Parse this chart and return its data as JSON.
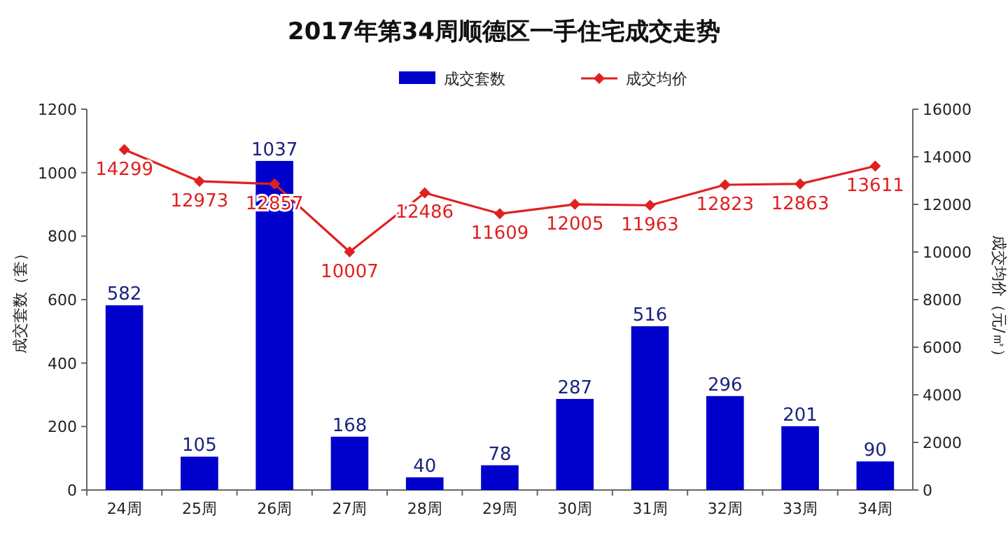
{
  "chart_data": {
    "type": "bar",
    "title": "2017年第34周顺德区一手住宅成交走势",
    "ylabel": "成交套数（套）",
    "y2label": "成交均价（元/㎡）",
    "categories": [
      "24周",
      "25周",
      "26周",
      "27周",
      "28周",
      "29周",
      "30周",
      "31周",
      "32周",
      "33周",
      "34周"
    ],
    "series": [
      {
        "name": "成交套数",
        "color": "#0000cc",
        "values": [
          582,
          105,
          1037,
          168,
          40,
          78,
          287,
          516,
          296,
          201,
          90
        ]
      },
      {
        "name": "成交均价",
        "type": "line",
        "axis": "y2",
        "color": "#e02020",
        "marker": "diamond",
        "values": [
          14299,
          12973,
          12857,
          10007,
          12486,
          11609,
          12005,
          11963,
          12823,
          12863,
          13611
        ]
      }
    ],
    "ylim": [
      0,
      1200
    ],
    "yticks": [
      0,
      200,
      400,
      600,
      800,
      1000,
      1200
    ],
    "y2lim": [
      0,
      16000
    ],
    "y2ticks": [
      0,
      2000,
      4000,
      6000,
      8000,
      10000,
      12000,
      14000,
      16000
    ],
    "data_labels": true,
    "legend": "top",
    "grid": false
  }
}
